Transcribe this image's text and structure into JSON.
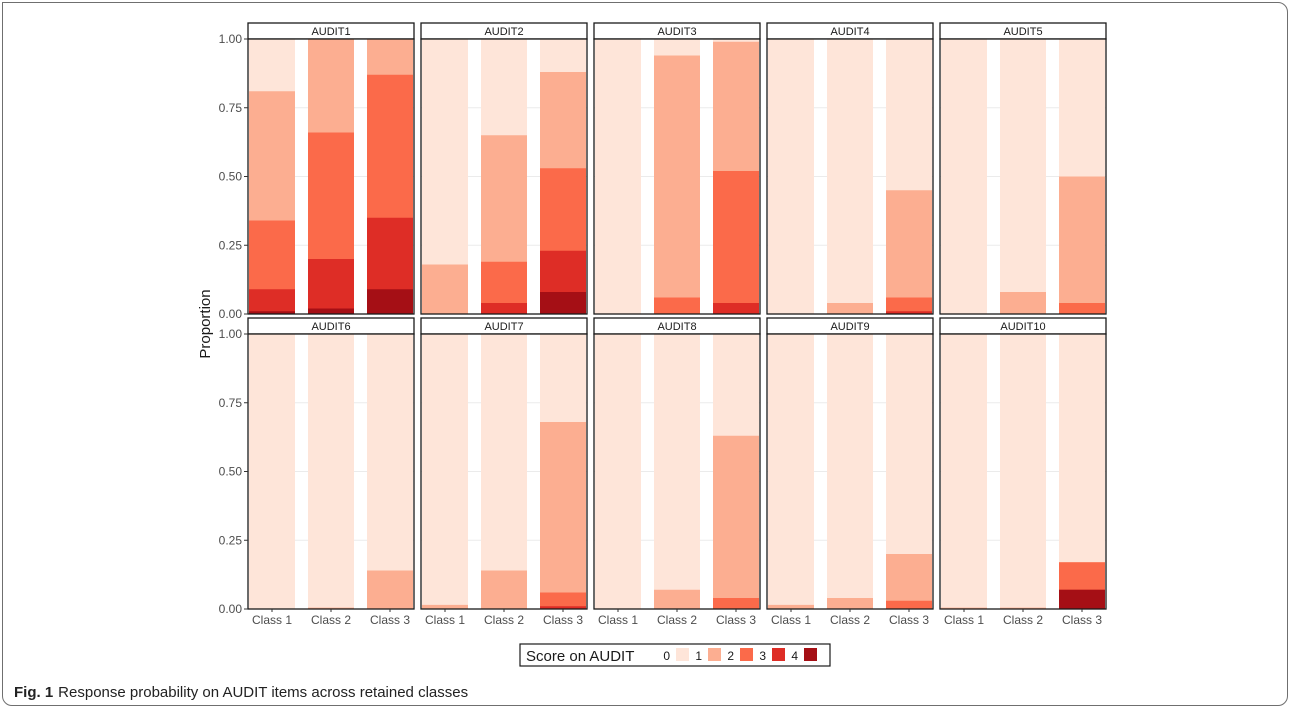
{
  "chart_data": {
    "type": "bar",
    "stacked": true,
    "facets": [
      "AUDIT1",
      "AUDIT2",
      "AUDIT3",
      "AUDIT4",
      "AUDIT5",
      "AUDIT6",
      "AUDIT7",
      "AUDIT8",
      "AUDIT9",
      "AUDIT10"
    ],
    "categories": [
      "Class 1",
      "Class 2",
      "Class 3"
    ],
    "ylabel": "Proportion",
    "yticks": [
      "0.00",
      "0.25",
      "0.50",
      "0.75",
      "1.00"
    ],
    "ylim": [
      0,
      1
    ],
    "grid": true,
    "legend": {
      "title": "Score on AUDIT",
      "placement": "bottom",
      "levels": [
        "0",
        "1",
        "2",
        "3",
        "4"
      ],
      "colors": [
        "#fee5d9",
        "#fcae91",
        "#fb6a4a",
        "#de2d26",
        "#a50f15"
      ]
    },
    "panels": [
      {
        "facet": "AUDIT1",
        "cumulative": [
          [
            1.0,
            0.81,
            0.34,
            0.09,
            0.01
          ],
          [
            1.0,
            1.0,
            0.66,
            0.2,
            0.02
          ],
          [
            1.0,
            1.0,
            0.87,
            0.35,
            0.09
          ]
        ]
      },
      {
        "facet": "AUDIT2",
        "cumulative": [
          [
            1.0,
            0.18,
            0.0,
            0.0,
            0.0
          ],
          [
            1.0,
            0.65,
            0.19,
            0.04,
            0.0
          ],
          [
            1.0,
            0.88,
            0.53,
            0.23,
            0.08
          ]
        ]
      },
      {
        "facet": "AUDIT3",
        "cumulative": [
          [
            1.0,
            0.0,
            0.0,
            0.0,
            0.0
          ],
          [
            1.0,
            0.94,
            0.06,
            0.0,
            0.0
          ],
          [
            1.0,
            0.99,
            0.52,
            0.04,
            0.0
          ]
        ]
      },
      {
        "facet": "AUDIT4",
        "cumulative": [
          [
            1.0,
            0.0,
            0.0,
            0.0,
            0.0
          ],
          [
            1.0,
            0.04,
            0.0,
            0.0,
            0.0
          ],
          [
            1.0,
            0.45,
            0.06,
            0.01,
            0.0
          ]
        ]
      },
      {
        "facet": "AUDIT5",
        "cumulative": [
          [
            1.0,
            0.0,
            0.0,
            0.0,
            0.0
          ],
          [
            1.0,
            0.08,
            0.0,
            0.0,
            0.0
          ],
          [
            1.0,
            0.5,
            0.04,
            0.0,
            0.0
          ]
        ]
      },
      {
        "facet": "AUDIT6",
        "cumulative": [
          [
            1.0,
            0.0,
            0.0,
            0.0,
            0.0
          ],
          [
            1.0,
            0.005,
            0.0,
            0.0,
            0.0
          ],
          [
            1.0,
            0.14,
            0.0,
            0.0,
            0.0
          ]
        ]
      },
      {
        "facet": "AUDIT7",
        "cumulative": [
          [
            1.0,
            0.015,
            0.0,
            0.0,
            0.0
          ],
          [
            1.0,
            0.14,
            0.0,
            0.0,
            0.0
          ],
          [
            1.0,
            0.68,
            0.06,
            0.01,
            0.0
          ]
        ]
      },
      {
        "facet": "AUDIT8",
        "cumulative": [
          [
            1.0,
            0.0,
            0.0,
            0.0,
            0.0
          ],
          [
            1.0,
            0.07,
            0.0,
            0.0,
            0.0
          ],
          [
            1.0,
            0.63,
            0.04,
            0.0,
            0.0
          ]
        ]
      },
      {
        "facet": "AUDIT9",
        "cumulative": [
          [
            1.0,
            0.015,
            0.0,
            0.0,
            0.0
          ],
          [
            1.0,
            0.04,
            0.0,
            0.0,
            0.0
          ],
          [
            1.0,
            0.2,
            0.03,
            0.0,
            0.0
          ]
        ]
      },
      {
        "facet": "AUDIT10",
        "cumulative": [
          [
            1.0,
            0.005,
            0.0,
            0.0,
            0.0
          ],
          [
            1.0,
            0.005,
            0.0,
            0.0,
            0.0
          ],
          [
            1.0,
            0.17,
            0.17,
            0.07,
            0.07
          ]
        ]
      }
    ]
  },
  "caption": {
    "label": "Fig. 1",
    "text": "Response probability on AUDIT items across retained classes"
  }
}
